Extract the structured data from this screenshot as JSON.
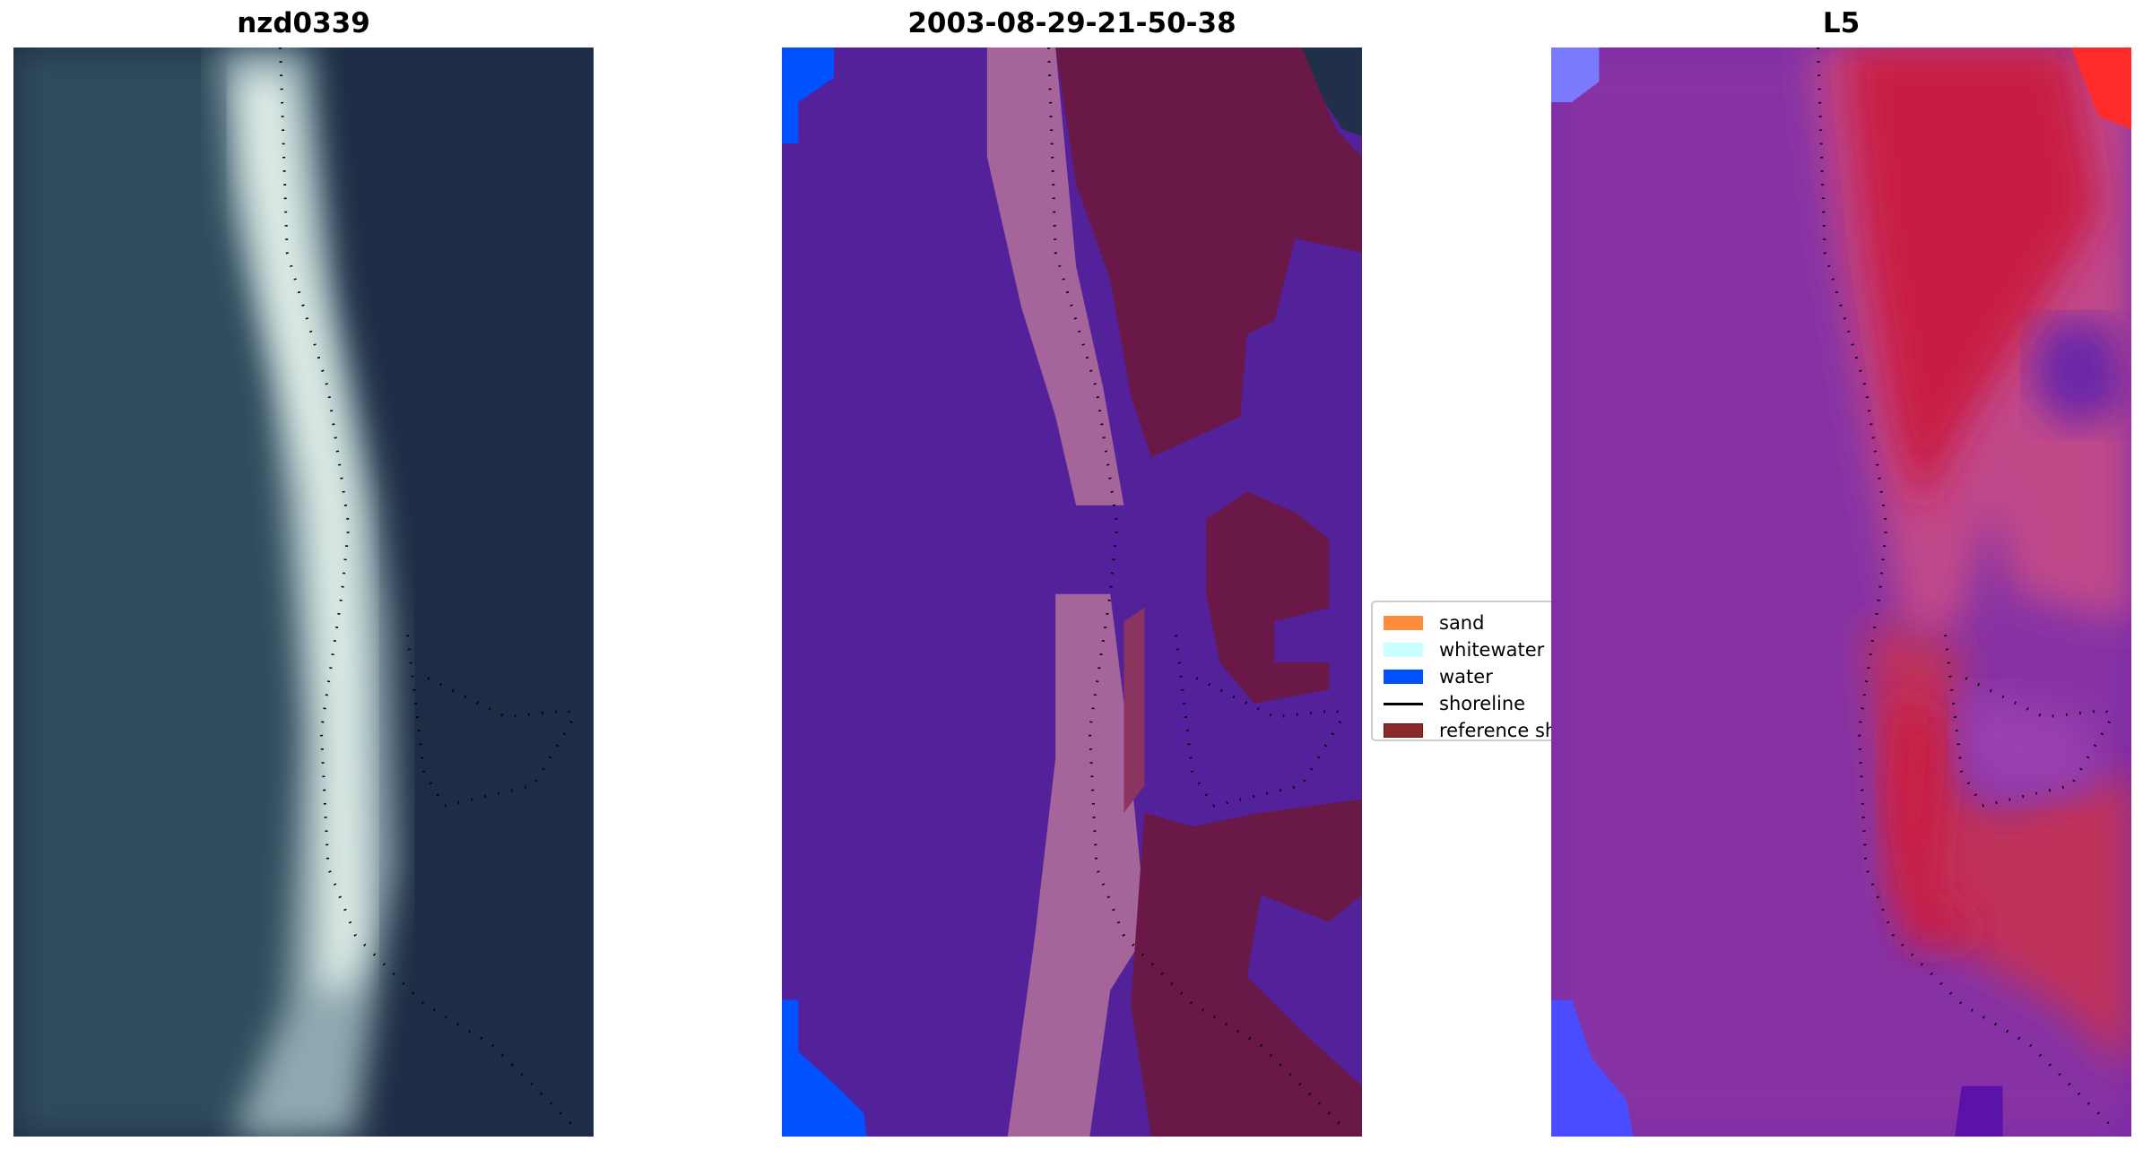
{
  "panels": [
    {
      "title": "nzd0339"
    },
    {
      "title": "2003-08-29-21-50-38"
    },
    {
      "title": "L5"
    }
  ],
  "legend": {
    "items": [
      {
        "label": "sand",
        "color": "#ff8c3a"
      },
      {
        "label": "whitewater",
        "color": "#c9ffff"
      },
      {
        "label": "water",
        "color": "#0052ff"
      },
      {
        "label": "shoreline",
        "color": "#000000"
      },
      {
        "label": "reference sho",
        "color": "#8b2a2a"
      }
    ]
  },
  "colors": {
    "classified_water": "#53219a",
    "classified_sand": "#a5649a",
    "classified_land": "#6a1848",
    "index_high": "#c81a42",
    "index_low": "#7a2aa8"
  }
}
